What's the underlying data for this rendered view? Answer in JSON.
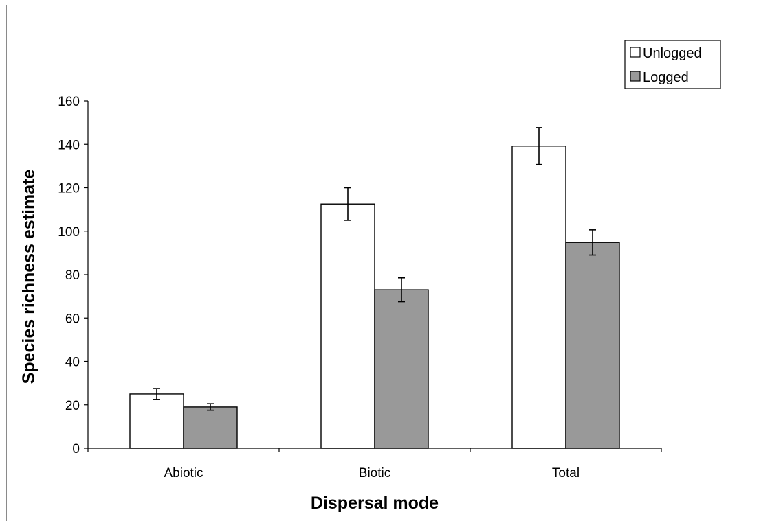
{
  "chart_data": {
    "type": "bar",
    "xlabel": "Dispersal mode",
    "ylabel": "Species richness estimate",
    "ylim": [
      0,
      160
    ],
    "yticks": [
      0,
      20,
      40,
      60,
      80,
      100,
      120,
      140,
      160
    ],
    "categories": [
      "Abiotic",
      "Biotic",
      "Total"
    ],
    "series": [
      {
        "name": "Unlogged",
        "color": "#ffffff",
        "values": [
          25,
          112.5,
          139.2
        ],
        "error": [
          2.5,
          7.5,
          8.5
        ]
      },
      {
        "name": "Logged",
        "color": "#999999",
        "values": [
          19,
          73,
          94.8
        ],
        "error": [
          1.5,
          5.5,
          5.8
        ]
      }
    ],
    "legend": "top-right",
    "grid": false,
    "error_bars": true
  }
}
